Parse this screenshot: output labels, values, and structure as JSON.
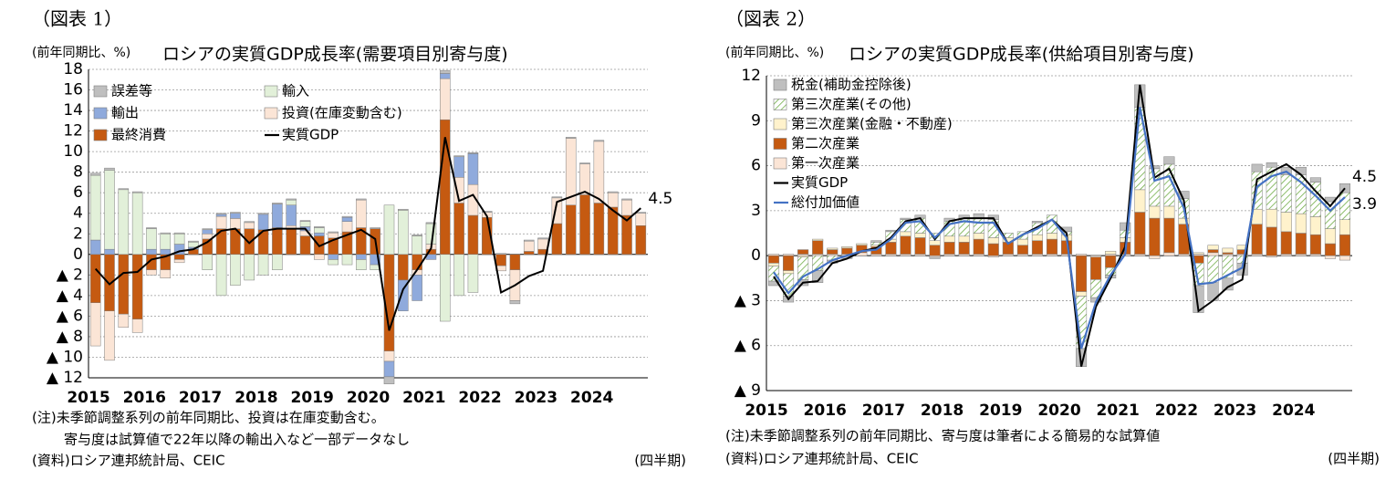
{
  "chart_data": [
    {
      "type": "bar",
      "stacked": true,
      "label": "（図表 1）",
      "unit_label": "(前年同期比、%)",
      "title": "ロシアの実質GDP成長率(需要項目別寄与度)",
      "notes": [
        "(注)未季節調整系列の前年同期比、投資は在庫変動含む。",
        "寄与度は試算値で22年以降の輸出入など一部データなし"
      ],
      "source": "(資料)ロシア連邦統計局、CEIC",
      "xlabel": "(四半期)",
      "categories": [
        "2015",
        null,
        null,
        null,
        "2016",
        null,
        null,
        null,
        "2017",
        null,
        null,
        null,
        "2018",
        null,
        null,
        null,
        "2019",
        null,
        null,
        null,
        "2020",
        null,
        null,
        null,
        "2021",
        null,
        null,
        null,
        "2022",
        null,
        null,
        null,
        "2023",
        null,
        null,
        null,
        "2024",
        null,
        null,
        null
      ],
      "ylim": [
        -12,
        18
      ],
      "yticks": [
        18,
        16,
        14,
        12,
        10,
        8,
        6,
        4,
        2,
        0,
        {
          "value": -2,
          "label": "▲ 2"
        },
        {
          "value": -4,
          "label": "▲ 4"
        },
        {
          "value": -6,
          "label": "▲ 6"
        },
        {
          "value": -8,
          "label": "▲ 8"
        },
        {
          "value": -10,
          "label": "▲ 10"
        },
        {
          "value": -12,
          "label": "▲ 12"
        }
      ],
      "grid": true,
      "series": [
        {
          "name": "誤差等",
          "type": "bar",
          "color": "#bfbfbf",
          "values": [
            0.2,
            0.2,
            0.1,
            0.1,
            0.1,
            0.1,
            0.1,
            0.1,
            0.1,
            0.1,
            0.1,
            0.1,
            0.1,
            0.1,
            0.1,
            0.1,
            0.1,
            0.1,
            0.1,
            0.1,
            0.1,
            -0.7,
            0.1,
            0.1,
            0.1,
            0.3,
            0.1,
            0.1,
            0.1,
            0.1,
            -0.3,
            0.1,
            0.1,
            0.1,
            0.1,
            0.1,
            0.1,
            0.1,
            0.1,
            0.1
          ]
        },
        {
          "name": "輸入",
          "type": "bar",
          "color": "#e2f0d9",
          "values": [
            6.3,
            7.7,
            6.3,
            6.0,
            2.0,
            1.5,
            1.0,
            0.5,
            -1.5,
            -4.0,
            -3.0,
            -2.5,
            -2.0,
            -1.5,
            0.5,
            0.5,
            0.5,
            -0.5,
            -1.0,
            -1.0,
            -0.5,
            4.8,
            4.3,
            1.8,
            2.0,
            -6.5,
            -4.0,
            -3.7,
            0,
            0,
            0,
            0,
            0,
            0,
            0,
            0,
            0,
            0,
            0,
            0
          ]
        },
        {
          "name": "輸出",
          "type": "bar",
          "color": "#8faadc",
          "values": [
            1.4,
            0.5,
            0,
            0,
            0.5,
            0.5,
            1.0,
            0.2,
            0.4,
            0.2,
            0.5,
            0,
            1.5,
            2.3,
            2.0,
            0.4,
            0.3,
            -0.5,
            0.4,
            -0.5,
            -1.0,
            -1.5,
            -3.0,
            -2.5,
            -0.5,
            0.5,
            2.0,
            3.0,
            0,
            0,
            0,
            0,
            0,
            0,
            0,
            0,
            0,
            0,
            0,
            0
          ]
        },
        {
          "name": "投資(在庫変動含む)",
          "type": "bar",
          "color": "#fbe5d6",
          "values": [
            -4.2,
            -4.8,
            -1.3,
            -1.3,
            -0.5,
            -0.8,
            -0.3,
            0,
            0.5,
            1.2,
            1.0,
            0.6,
            0,
            0,
            0.3,
            0.5,
            -0.5,
            0.5,
            1.0,
            2.7,
            0,
            -1.0,
            0,
            -0.5,
            0.5,
            4.0,
            2.5,
            3.0,
            0.5,
            -0.5,
            -3.0,
            1.0,
            1.0,
            2.5,
            6.5,
            3.0,
            6.0,
            1.4,
            1.5,
            1.2
          ]
        },
        {
          "name": "最終消費",
          "type": "bar",
          "color": "#c55a11",
          "values": [
            -4.7,
            -5.5,
            -5.8,
            -6.3,
            -1.5,
            -1.5,
            -0.5,
            0.5,
            1.5,
            2.5,
            2.5,
            2.5,
            2.4,
            2.6,
            2.5,
            1.8,
            1.8,
            1.6,
            2.2,
            2.6,
            2.5,
            -9.4,
            -2.5,
            -1.5,
            0.5,
            13.1,
            5.0,
            3.8,
            3.6,
            -1.1,
            -1.5,
            0.3,
            0.5,
            3.0,
            4.8,
            5.8,
            5.0,
            4.6,
            3.8,
            2.8
          ]
        },
        {
          "name": "実質GDP",
          "type": "line",
          "color": "#000000",
          "values": [
            -1.4,
            -2.9,
            -1.8,
            -1.7,
            -0.5,
            -0.2,
            0.3,
            0.5,
            1.2,
            2.3,
            2.5,
            1.1,
            2.3,
            2.5,
            2.5,
            2.5,
            0.8,
            1.4,
            1.9,
            2.4,
            1.5,
            -7.4,
            -3.4,
            -1.5,
            0.6,
            11.4,
            5.2,
            5.8,
            3.7,
            -3.7,
            -3.0,
            -2.1,
            -1.6,
            5.1,
            5.6,
            6.1,
            5.4,
            4.3,
            3.3,
            4.5
          ],
          "value_labels": [
            null,
            null,
            null,
            null,
            null,
            null,
            null,
            null,
            null,
            null,
            null,
            null,
            null,
            null,
            null,
            null,
            null,
            null,
            null,
            null,
            null,
            null,
            null,
            null,
            null,
            null,
            null,
            null,
            null,
            null,
            null,
            null,
            null,
            null,
            null,
            null,
            null,
            null,
            null,
            "4.5"
          ]
        }
      ]
    },
    {
      "type": "bar",
      "stacked": true,
      "label": "（図表 2）",
      "unit_label": "(前年同期比、%)",
      "title": "ロシアの実質GDP成長率(供給項目別寄与度)",
      "notes": [
        "(注)未季節調整系列の前年同期比、寄与度は筆者による簡易的な試算値"
      ],
      "source": "(資料)ロシア連邦統計局、CEIC",
      "xlabel": "(四半期)",
      "categories": [
        "2015",
        null,
        null,
        null,
        "2016",
        null,
        null,
        null,
        "2017",
        null,
        null,
        null,
        "2018",
        null,
        null,
        null,
        "2019",
        null,
        null,
        null,
        "2020",
        null,
        null,
        null,
        "2021",
        null,
        null,
        null,
        "2022",
        null,
        null,
        null,
        "2023",
        null,
        null,
        null,
        "2024",
        null,
        null,
        null
      ],
      "ylim": [
        -9,
        12
      ],
      "yticks": [
        12,
        9,
        6,
        3,
        0,
        {
          "value": -3,
          "label": "▲ 3"
        },
        {
          "value": -6,
          "label": "▲ 6"
        },
        {
          "value": -9,
          "label": "▲ 9"
        }
      ],
      "grid": true,
      "series": [
        {
          "name": "税金(補助金控除後)",
          "type": "bar",
          "color": "#bfbfbf",
          "values": [
            -0.3,
            -0.4,
            -0.4,
            -0.8,
            -0.2,
            -0.2,
            0,
            0.1,
            0.1,
            0.1,
            0.2,
            -0.1,
            0.2,
            0.2,
            0.3,
            0.3,
            0,
            0,
            0.1,
            0,
            0.3,
            -1.2,
            -0.3,
            -0.2,
            0.5,
            1.5,
            0.2,
            0.5,
            0.5,
            -1.8,
            -1.2,
            -0.8,
            -0.8,
            0.5,
            0.3,
            0.5,
            0.5,
            0.3,
            0.3,
            0.6
          ]
        },
        {
          "name": "第三次産業(その他)",
          "type": "bar",
          "color": "#a9d18e",
          "pattern": "hatch",
          "values": [
            -1.0,
            -1.5,
            -1.5,
            -1.0,
            -0.3,
            0,
            0,
            0.2,
            0.5,
            0.8,
            1.0,
            0.5,
            1.0,
            1.2,
            1.0,
            1.2,
            0.3,
            0.5,
            0.8,
            1.2,
            0.2,
            -3.5,
            -1.2,
            -0.5,
            0.5,
            5.5,
            2.5,
            2.8,
            1.3,
            -1.5,
            -1.8,
            -1.5,
            -0.5,
            2.5,
            2.8,
            2.5,
            2.6,
            2.3,
            1.8,
            1.8
          ]
        },
        {
          "name": "第三次産業(金融・不動産)",
          "type": "bar",
          "color": "#fff2cc",
          "values": [
            -0.2,
            -0.2,
            -0.1,
            0.1,
            0.1,
            0.1,
            0.1,
            0.1,
            0.2,
            0.3,
            0.3,
            0.3,
            0.4,
            0.4,
            0.4,
            0.4,
            0.3,
            0.4,
            0.4,
            0.4,
            0.4,
            -0.3,
            0,
            0.2,
            0.3,
            1.5,
            0.8,
            0.8,
            0.4,
            0.1,
            0.3,
            0.3,
            0.3,
            1.0,
            1.2,
            1.3,
            1.3,
            1.2,
            1.0,
            1.0
          ]
        },
        {
          "name": "第二次産業",
          "type": "bar",
          "color": "#c55a11",
          "values": [
            -0.5,
            -1.0,
            0.3,
            0.9,
            0.3,
            0.4,
            0.5,
            0.5,
            0.8,
            1.2,
            1.1,
            0.7,
            0.8,
            0.8,
            1.0,
            0.8,
            0.8,
            0.6,
            0.9,
            1.0,
            0.9,
            -2.4,
            -1.5,
            -0.8,
            0.8,
            2.8,
            2.5,
            2.3,
            2.0,
            -0.5,
            0.2,
            0.1,
            0.3,
            2.0,
            1.9,
            1.5,
            1.4,
            1.3,
            0.8,
            1.4
          ]
        },
        {
          "name": "第一次産業",
          "type": "bar",
          "color": "#fbe5d6",
          "values": [
            0.1,
            0.1,
            0.1,
            0.1,
            0.1,
            0.1,
            0.2,
            0.1,
            0.1,
            0.1,
            0.1,
            -0.1,
            0.1,
            0.1,
            0.1,
            -0.1,
            0.1,
            0.1,
            0.1,
            0.1,
            0.1,
            0.1,
            -0.1,
            0.1,
            0.1,
            0.1,
            -0.2,
            0.2,
            0.1,
            0.1,
            0.2,
            0.1,
            0.1,
            0.1,
            -0.1,
            0.1,
            0.1,
            0.1,
            -0.2,
            -0.3
          ]
        },
        {
          "name": "実質GDP",
          "type": "line",
          "color": "#000000",
          "values": [
            -1.4,
            -2.9,
            -1.8,
            -1.7,
            -0.5,
            -0.2,
            0.3,
            0.5,
            1.2,
            2.3,
            2.5,
            1.1,
            2.3,
            2.5,
            2.5,
            2.5,
            0.8,
            1.4,
            1.9,
            2.4,
            1.5,
            -7.4,
            -3.4,
            -1.5,
            0.6,
            11.4,
            5.2,
            5.8,
            3.7,
            -3.7,
            -3.0,
            -2.1,
            -1.6,
            5.1,
            5.6,
            6.1,
            5.4,
            4.3,
            3.3,
            4.5
          ],
          "value_labels": [
            null,
            null,
            null,
            null,
            null,
            null,
            null,
            null,
            null,
            null,
            null,
            null,
            null,
            null,
            null,
            null,
            null,
            null,
            null,
            null,
            null,
            null,
            null,
            null,
            null,
            null,
            null,
            null,
            null,
            null,
            null,
            null,
            null,
            null,
            null,
            null,
            null,
            null,
            null,
            "4.5"
          ]
        },
        {
          "name": "総付加価値",
          "type": "line",
          "color": "#4472c4",
          "values": [
            -1.1,
            -2.5,
            -1.4,
            -0.9,
            -0.3,
            0,
            0.3,
            0.4,
            1.1,
            2.2,
            2.3,
            1.2,
            2.1,
            2.3,
            2.2,
            2.2,
            0.8,
            1.4,
            1.8,
            2.4,
            1.2,
            -6.2,
            -3.1,
            -1.3,
            0.1,
            9.9,
            5.0,
            5.3,
            3.2,
            -1.9,
            -1.8,
            -1.3,
            -0.8,
            4.6,
            5.3,
            5.6,
            4.9,
            4.0,
            3.0,
            3.9
          ],
          "value_labels": [
            null,
            null,
            null,
            null,
            null,
            null,
            null,
            null,
            null,
            null,
            null,
            null,
            null,
            null,
            null,
            null,
            null,
            null,
            null,
            null,
            null,
            null,
            null,
            null,
            null,
            null,
            null,
            null,
            null,
            null,
            null,
            null,
            null,
            null,
            null,
            null,
            null,
            null,
            null,
            "3.9"
          ]
        }
      ]
    }
  ]
}
